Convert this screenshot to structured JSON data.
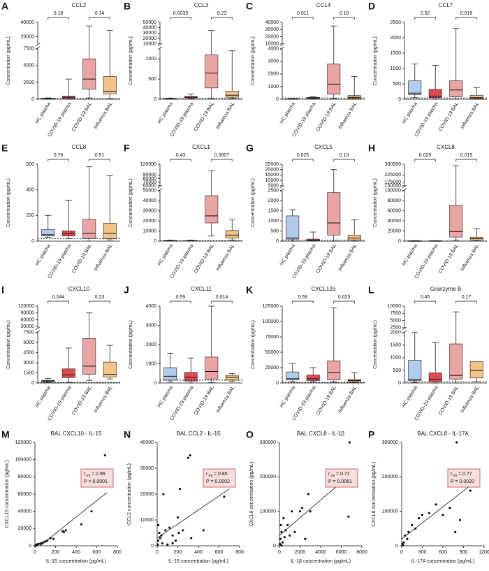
{
  "chart_data": [
    {
      "type": "box",
      "label": "A",
      "title": "CCL2",
      "ylabel": "Concentration (pg/mL)",
      "categories": [
        "HC plasma",
        "COVID-19 plasma",
        "COVID-19 BAL",
        "Influenza BAL"
      ],
      "colors": [
        "#a8c4ec",
        "#d9363e",
        "#e89a9a",
        "#f3bd7a"
      ],
      "boxes": [
        [
          0,
          50,
          100,
          150,
          200
        ],
        [
          0,
          150,
          300,
          450,
          3000
        ],
        [
          200,
          1500,
          3000,
          6000,
          35000
        ],
        [
          100,
          800,
          1200,
          3400,
          29000
        ]
      ],
      "p_values": [
        "0.18",
        "0.14"
      ],
      "reference_line": 100,
      "ylim": [
        0,
        7500
      ],
      "yticks": [
        0,
        2500,
        5000,
        7500
      ],
      "upper_ylim": [
        10000,
        40000
      ],
      "upper_yticks": [
        20000,
        40000
      ]
    },
    {
      "type": "box",
      "label": "B",
      "title": "CCL3",
      "ylabel": "Concentration (pg/mL)",
      "categories": [
        "HC plasma",
        "COVID-19 plasma",
        "COVID-19 BAL",
        "Influenza BAL"
      ],
      "colors": [
        "#a8c4ec",
        "#d9363e",
        "#e89a9a",
        "#f3bd7a"
      ],
      "boxes": [
        [
          0,
          5,
          10,
          15,
          30
        ],
        [
          10,
          30,
          50,
          70,
          130
        ],
        [
          20,
          280,
          650,
          1100,
          35000
        ],
        [
          20,
          50,
          100,
          200,
          1200
        ]
      ],
      "p_values": [
        "0.0033",
        "0.23"
      ],
      "reference_line": 30,
      "ylim": [
        0,
        1250
      ],
      "yticks": [
        0,
        500,
        1000
      ],
      "upper_ylim": [
        10000,
        50000
      ],
      "upper_yticks": [
        10000,
        20000,
        30000,
        40000,
        50000
      ]
    },
    {
      "type": "box",
      "label": "C",
      "title": "CCL4",
      "ylabel": "Concentration (pg/mL)",
      "categories": [
        "HC plasma",
        "COVID-19 plasma",
        "COVID-19 BAL",
        "Influenza BAL"
      ],
      "colors": [
        "#a8c4ec",
        "#d9363e",
        "#e89a9a",
        "#f3bd7a"
      ],
      "boxes": [
        [
          0,
          10,
          20,
          40,
          60
        ],
        [
          20,
          60,
          100,
          150,
          200
        ],
        [
          50,
          400,
          1200,
          2800,
          35000
        ],
        [
          20,
          50,
          150,
          300,
          1800
        ]
      ],
      "p_values": [
        "0.011",
        "0.16"
      ],
      "reference_line": 100,
      "ylim": [
        0,
        4000
      ],
      "yticks": [
        0,
        1000,
        2000,
        3000,
        4000
      ],
      "upper_ylim": [
        10000,
        40000
      ],
      "upper_yticks": [
        10000,
        20000,
        30000,
        40000
      ]
    },
    {
      "type": "box",
      "label": "D",
      "title": "CCL7",
      "ylabel": "Concentration (pg/mL)",
      "categories": [
        "HC plasma",
        "COVID-19 plasma",
        "COVID-19 BAL",
        "Influenza BAL"
      ],
      "colors": [
        "#a8c4ec",
        "#d9363e",
        "#e89a9a",
        "#f3bd7a"
      ],
      "boxes": [
        [
          50,
          150,
          200,
          600,
          1150
        ],
        [
          0,
          50,
          100,
          320,
          1100
        ],
        [
          0,
          80,
          300,
          600,
          2300
        ],
        [
          0,
          20,
          50,
          130,
          380
        ]
      ],
      "p_values": [
        "0.52",
        "0.019"
      ],
      "reference_line": 40,
      "ylim": [
        0,
        2500
      ],
      "yticks": [
        0,
        500,
        1000,
        1500,
        2000,
        2500
      ]
    },
    {
      "type": "box",
      "label": "E",
      "title": "CCL8",
      "ylabel": "Concentration (pg/mL)",
      "categories": [
        "HC plasma",
        "COVID-19 plasma",
        "COVID-19 BAL",
        "Influenza BAL"
      ],
      "colors": [
        "#a8c4ec",
        "#d9363e",
        "#e89a9a",
        "#f3bd7a"
      ],
      "boxes": [
        [
          30,
          40,
          50,
          90,
          200
        ],
        [
          20,
          40,
          60,
          80,
          320
        ],
        [
          0,
          20,
          60,
          170,
          580
        ],
        [
          10,
          20,
          60,
          140,
          510
        ]
      ],
      "p_values": [
        "0.76",
        "0.91"
      ],
      "reference_line": 20,
      "ylim": [
        0,
        600
      ],
      "yticks": [
        0,
        200,
        400,
        600
      ]
    },
    {
      "type": "box",
      "label": "F",
      "title": "CXCL1",
      "ylabel": "Concentration (pg/mL)",
      "categories": [
        "HC plasma",
        "COVID-19 plasma",
        "COVID-19 BAL",
        "Influenza BAL"
      ],
      "colors": [
        "#a8c4ec",
        "#d9363e",
        "#e89a9a",
        "#f3bd7a"
      ],
      "boxes": [
        [
          0,
          100,
          300,
          600,
          1000
        ],
        [
          0,
          100,
          300,
          500,
          1000
        ],
        [
          5000,
          18000,
          25000,
          45000,
          102000
        ],
        [
          1000,
          3000,
          6000,
          10500,
          21000
        ]
      ],
      "p_values": [
        "0.43",
        "0.0007"
      ],
      "reference_line": 500,
      "ylim": [
        0,
        50000
      ],
      "yticks": [
        0,
        10000,
        20000,
        30000,
        40000,
        50000
      ],
      "upper_ylim": [
        60000,
        120000
      ],
      "upper_yticks": [
        60000,
        70000,
        80000,
        90000,
        120000
      ]
    },
    {
      "type": "box",
      "label": "G",
      "title": "CXCL5",
      "ylabel": "Concentration (pg/mL)",
      "categories": [
        "HC plasma",
        "COVID-19 plasma",
        "COVID-19 BAL",
        "Influenza BAL"
      ],
      "colors": [
        "#a8c4ec",
        "#d9363e",
        "#e89a9a",
        "#f3bd7a"
      ],
      "boxes": [
        [
          0,
          100,
          150,
          1250,
          1550
        ],
        [
          0,
          20,
          50,
          100,
          450
        ],
        [
          0,
          300,
          900,
          2400,
          20000
        ],
        [
          0,
          50,
          150,
          300,
          1050
        ]
      ],
      "p_values": [
        "0.025",
        "0.10"
      ],
      "reference_line": 50,
      "ylim": [
        0,
        2500
      ],
      "yticks": [
        0,
        500,
        1000,
        1500,
        2000,
        2500
      ],
      "upper_ylim": [
        5000,
        25000
      ],
      "upper_yticks": [
        5000,
        10000,
        15000,
        20000,
        25000
      ]
    },
    {
      "type": "box",
      "label": "H",
      "title": "CXCL8",
      "ylabel": "Concentration (pg/mL)",
      "categories": [
        "HC plasma",
        "COVID-19 plasma",
        "COVID-19 BAL",
        "Influenza BAL"
      ],
      "colors": [
        "#a8c4ec",
        "#d9363e",
        "#e89a9a",
        "#f3bd7a"
      ],
      "boxes": [
        [
          0,
          100,
          300,
          500,
          1000
        ],
        [
          0,
          100,
          300,
          600,
          1000
        ],
        [
          2000,
          8000,
          19000,
          71000,
          290000
        ],
        [
          500,
          2000,
          5000,
          8000,
          25000
        ]
      ],
      "p_values": [
        "0.025",
        "0.019"
      ],
      "reference_line": 300,
      "ylim": [
        0,
        100000
      ],
      "yticks": [
        0,
        20000,
        40000,
        60000,
        80000,
        100000
      ],
      "upper_ylim": [
        150000,
        300000
      ],
      "upper_yticks": [
        150000,
        175000,
        225000,
        300000
      ]
    },
    {
      "type": "box",
      "label": "I",
      "title": "CXCL10",
      "ylabel": "Concentration (pg/mL)",
      "categories": [
        "HC plasma",
        "COVID-19 plasma",
        "COVID-19 BAL",
        "Influenza BAL"
      ],
      "colors": [
        "#a8c4ec",
        "#d9363e",
        "#e89a9a",
        "#f3bd7a"
      ],
      "boxes": [
        [
          50,
          200,
          300,
          400,
          700
        ],
        [
          100,
          800,
          1200,
          2100,
          5200
        ],
        [
          400,
          1300,
          2500,
          6600,
          90000
        ],
        [
          600,
          900,
          1300,
          3100,
          5600
        ]
      ],
      "p_values": [
        "0.044",
        "0.23"
      ],
      "reference_line": 100,
      "ylim": [
        0,
        7500
      ],
      "yticks": [
        0,
        1500,
        3000,
        4500,
        6000,
        7500
      ],
      "upper_ylim": [
        25000,
        120000
      ],
      "upper_yticks": [
        30000,
        60000,
        90000,
        120000
      ]
    },
    {
      "type": "box",
      "label": "J",
      "title": "CXCL11",
      "ylabel": "Concentration (pg/mL)",
      "categories": [
        "HC plasma",
        "COVID-19 plasma",
        "COVID-19 BAL",
        "Influenza BAL"
      ],
      "colors": [
        "#a8c4ec",
        "#d9363e",
        "#e89a9a",
        "#f3bd7a"
      ],
      "boxes": [
        [
          50,
          150,
          350,
          800,
          1550
        ],
        [
          0,
          100,
          300,
          550,
          1300
        ],
        [
          20,
          200,
          600,
          1350,
          4000
        ],
        [
          80,
          150,
          300,
          400,
          500
        ]
      ],
      "p_values": [
        "0.59",
        "0.014"
      ],
      "reference_line": 150,
      "ylim": [
        0,
        4000
      ],
      "yticks": [
        0,
        1000,
        2000,
        3000,
        4000
      ]
    },
    {
      "type": "box",
      "label": "K",
      "title": "CXCL12α",
      "ylabel": "Concentration (pg/mL)",
      "categories": [
        "HC plasma",
        "COVID-19 plasma",
        "COVID-19 BAL",
        "Influenza BAL"
      ],
      "colors": [
        "#a8c4ec",
        "#d9363e",
        "#e89a9a",
        "#f3bd7a"
      ],
      "boxes": [
        [
          2000,
          5000,
          7000,
          18000,
          32000
        ],
        [
          2000,
          4000,
          7000,
          13000,
          25000
        ],
        [
          2000,
          5000,
          17000,
          36000,
          122000
        ],
        [
          1000,
          2000,
          4000,
          6000,
          17000
        ]
      ],
      "p_values": [
        "0.59",
        "0.023"
      ],
      "reference_line": 1000,
      "ylim": [
        0,
        125000
      ],
      "yticks": [
        0,
        25000,
        50000,
        75000,
        100000,
        125000
      ]
    },
    {
      "type": "box",
      "label": "L",
      "title": "Granzyme B",
      "ylabel": "Concentration (pg/mL)",
      "categories": [
        "HC plasma",
        "COVID-19 plasma",
        "COVID-19 BAL",
        "Influenza BAL"
      ],
      "colors": [
        "#a8c4ec",
        "#d9363e",
        "#e89a9a",
        "#f3bd7a"
      ],
      "boxes": [
        [
          20,
          100,
          150,
          900,
          2000
        ],
        [
          0,
          50,
          150,
          400,
          1600
        ],
        [
          0,
          150,
          300,
          1550,
          8000
        ],
        [
          50,
          200,
          500,
          850,
          850
        ]
      ],
      "p_values": [
        "0.45",
        "0.17"
      ],
      "reference_line": 50,
      "ylim": [
        0,
        2000
      ],
      "yticks": [
        0,
        500,
        1000,
        1500,
        2000
      ],
      "upper_ylim": [
        2500,
        10000
      ],
      "upper_yticks": [
        2500,
        5000,
        7500,
        10000
      ]
    },
    {
      "type": "scatter",
      "label": "M",
      "title": "BAL CXCL10 - IL-15",
      "xlabel": "IL-15 concentration (pg/mL)",
      "ylabel": "CXCL10 concentration (pg/mL)",
      "r_symbol": "r",
      "r_subscript": "rm",
      "r_text": "= 0.96",
      "p_text": "P < 0.0001",
      "x": [
        5,
        15,
        10,
        20,
        30,
        50,
        60,
        80,
        100,
        120,
        150,
        180,
        270,
        280,
        300,
        450,
        550,
        680
      ],
      "y": [
        500,
        300,
        1000,
        1500,
        2000,
        2500,
        3000,
        4000,
        5000,
        6000,
        9000,
        8000,
        17000,
        16000,
        18000,
        25000,
        40000,
        105000
      ],
      "fit_x": [
        50,
        700
      ],
      "fit_y": [
        0,
        62000
      ],
      "xlim": [
        0,
        800
      ],
      "xticks": [
        0,
        200,
        400,
        600,
        800
      ],
      "ylim": [
        0,
        120000
      ],
      "yticks": [
        0,
        20000,
        40000,
        60000,
        80000,
        100000,
        120000
      ]
    },
    {
      "type": "scatter",
      "label": "N",
      "title": "BAL CCL2 - IL-15",
      "xlabel": "IL-15 concentration (pg/mL)",
      "ylabel": "CCL2 concentration (pg/mL)",
      "r_symbol": "r",
      "r_subscript": "rm",
      "r_text": "= 0.85",
      "p_text": "P = 0.0002",
      "x": [
        5,
        10,
        10,
        20,
        30,
        40,
        50,
        60,
        80,
        100,
        120,
        150,
        150,
        180,
        200,
        210,
        220,
        250,
        300,
        320,
        330,
        450,
        520,
        650
      ],
      "y": [
        500,
        2000,
        8000,
        5000,
        3000,
        4000,
        1000,
        20000,
        6000,
        500,
        7000,
        4000,
        1000,
        2000,
        11000,
        5000,
        22000,
        6000,
        34000,
        35000,
        3000,
        6000,
        23000,
        19000
      ],
      "fit_x": [
        0,
        700
      ],
      "fit_y": [
        3000,
        22000
      ],
      "xlim": [
        0,
        800
      ],
      "xticks": [
        0,
        200,
        400,
        600,
        800
      ],
      "ylim": [
        0,
        40000
      ],
      "yticks": [
        0,
        10000,
        20000,
        30000,
        40000
      ]
    },
    {
      "type": "scatter",
      "label": "O",
      "title": "BAL CXCL8 - IL-1β",
      "xlabel": "IL-1β concentration (pg/mL)",
      "ylabel": "CXCL8 concentration (pg/mL)",
      "r_symbol": "r",
      "r_subscript": "rm",
      "r_text": "= 0.71",
      "p_text": "P = 0.0061",
      "x": [
        50,
        100,
        150,
        200,
        200,
        300,
        400,
        500,
        600,
        800,
        1000,
        1200,
        1500,
        2000,
        2200,
        2500,
        2800,
        3000,
        6700,
        6800
      ],
      "y": [
        5000,
        20000,
        60000,
        40000,
        1000,
        10000,
        80000,
        25000,
        45000,
        60000,
        30000,
        100000,
        40000,
        100000,
        110000,
        20000,
        150000,
        100000,
        85000,
        300000
      ],
      "fit_x": [
        0,
        7000
      ],
      "fit_y": [
        30000,
        210000
      ],
      "xlim": [
        0,
        8000
      ],
      "xticks": [
        0,
        2000,
        4000,
        6000,
        8000
      ],
      "ylim": [
        0,
        300000
      ],
      "yticks": [
        0,
        100000,
        200000,
        300000
      ]
    },
    {
      "type": "scatter",
      "label": "P",
      "title": "BAL CXCL8 - IL-17A",
      "xlabel": "IL-17A concentration (pg/mL)",
      "ylabel": "CXCL8 concentration (pg/mL)",
      "r_symbol": "r",
      "r_subscript": "rm",
      "r_text": "= 0.77",
      "p_text": "P = 0.0020",
      "x": [
        10,
        20,
        30,
        50,
        80,
        100,
        150,
        200,
        250,
        300,
        400,
        500,
        600,
        700,
        780,
        800,
        850,
        1000
      ],
      "y": [
        5000,
        2000,
        10000,
        30000,
        20000,
        40000,
        60000,
        50000,
        80000,
        90000,
        95000,
        120000,
        90000,
        110000,
        40000,
        300000,
        75000,
        160000
      ],
      "fit_x": [
        0,
        1000
      ],
      "fit_y": [
        20000,
        175000
      ],
      "xlim": [
        0,
        1200
      ],
      "xticks": [
        0,
        300,
        600,
        900,
        1200
      ],
      "ylim": [
        0,
        300000
      ],
      "yticks": [
        0,
        100000,
        200000,
        300000
      ]
    }
  ]
}
